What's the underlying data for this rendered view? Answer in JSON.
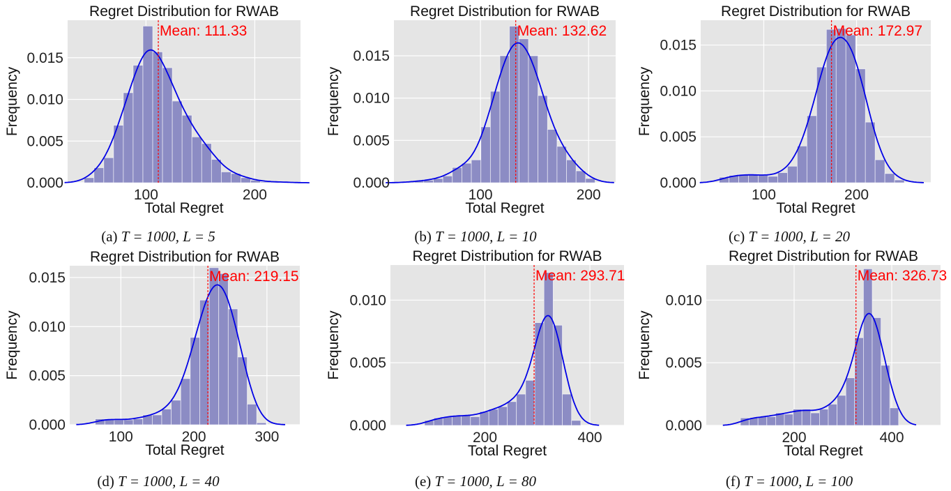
{
  "colors": {
    "bar": "#8c8cc4",
    "kde": "#0000e6",
    "mean": "#ff0000",
    "bg": "#e5e5e5",
    "grid": "#ffffff"
  },
  "chart_data": [
    {
      "type": "bar",
      "title": "Regret Distribution for RWAB",
      "xlabel": "Total Regret",
      "ylabel": "Frequency",
      "xlim": [
        28,
        242
      ],
      "ylim": [
        0,
        0.0195
      ],
      "xticks": [
        100,
        200
      ],
      "yticks": [
        "0.000",
        "0.005",
        "0.010",
        "0.015"
      ],
      "mean": 111.33,
      "mean_label": "Mean: 111.33",
      "bin_edges": [
        43.2,
        52.2,
        61.2,
        70.2,
        79.2,
        88.2,
        97.2,
        106.2,
        115.2,
        124.2,
        133.2,
        142.2,
        151.2,
        160.2,
        169.2,
        178.2,
        187.2,
        196.2,
        205.2,
        214.2,
        223.2,
        232.2
      ],
      "values": [
        0.0006,
        0.0018,
        0.003,
        0.0069,
        0.0108,
        0.0141,
        0.0188,
        0.0157,
        0.0138,
        0.0098,
        0.0081,
        0.0055,
        0.0047,
        0.0028,
        0.0013,
        0.0011,
        0.0006,
        0.0003,
        0.0001,
        0.0001,
        0.0001
      ],
      "caption_label": "(a)",
      "caption_math": "T = 1000, L = 5"
    },
    {
      "type": "bar",
      "title": "Regret Distribution for RWAB",
      "xlabel": "Total Regret",
      "ylabel": "Frequency",
      "xlim": [
        20,
        225
      ],
      "ylim": [
        0,
        0.0192
      ],
      "xticks": [
        100,
        200
      ],
      "yticks": [
        "0.000",
        "0.005",
        "0.010",
        "0.015"
      ],
      "mean": 132.62,
      "mean_label": "Mean: 132.62",
      "bin_edges": [
        30,
        38.8,
        47.6,
        56.4,
        65.2,
        74,
        82.8,
        91.6,
        100.4,
        109.2,
        118,
        126.8,
        135.6,
        144.4,
        153.2,
        162,
        170.8,
        179.6,
        188.4,
        197.2,
        206
      ],
      "values": [
        0.0001,
        0.0002,
        0.0003,
        0.0005,
        0.0008,
        0.0018,
        0.0023,
        0.0027,
        0.0066,
        0.0108,
        0.015,
        0.0185,
        0.017,
        0.015,
        0.0103,
        0.0063,
        0.0043,
        0.0027,
        0.0014,
        0.0005
      ],
      "caption_label": "(b)",
      "caption_math": "T = 1000, L = 10"
    },
    {
      "type": "bar",
      "title": "Regret Distribution for RWAB",
      "xlabel": "Total Regret",
      "ylabel": "Frequency",
      "xlim": [
        32,
        280
      ],
      "ylim": [
        0,
        0.0177
      ],
      "xticks": [
        100,
        200
      ],
      "yticks": [
        "0.000",
        "0.005",
        "0.010",
        "0.015"
      ],
      "mean": 172.97,
      "mean_label": "Mean: 172.97",
      "bin_edges": [
        52,
        62.5,
        73,
        83.5,
        94,
        104.5,
        115,
        125.5,
        136,
        146.5,
        157,
        167.5,
        178,
        188.5,
        199,
        209.5,
        220,
        230.5,
        241,
        251.5
      ],
      "values": [
        0.0006,
        0.0008,
        0.0009,
        0.0009,
        0.0008,
        0.0007,
        0.0011,
        0.0018,
        0.004,
        0.0073,
        0.0126,
        0.0167,
        0.0168,
        0.0161,
        0.0124,
        0.0066,
        0.0025,
        0.001,
        0.0003
      ],
      "caption_label": "(c)",
      "caption_math": "T = 1000, L = 20"
    },
    {
      "type": "bar",
      "title": "Regret Distribution for RWAB",
      "xlabel": "Total Regret",
      "ylabel": "Frequency",
      "xlim": [
        30,
        345
      ],
      "ylim": [
        0,
        0.0162
      ],
      "xticks": [
        100,
        200,
        300
      ],
      "yticks": [
        "0.000",
        "0.005",
        "0.010",
        "0.015"
      ],
      "mean": 219.15,
      "mean_label": "Mean: 219.15",
      "bin_edges": [
        65,
        78,
        91,
        104,
        117,
        130,
        143,
        156,
        169,
        182,
        195,
        208,
        221,
        234,
        247,
        260,
        273,
        286,
        299
      ],
      "values": [
        0.0006,
        0.0006,
        0.0005,
        0.0005,
        0.0006,
        0.001,
        0.001,
        0.0016,
        0.0025,
        0.0047,
        0.0089,
        0.0127,
        0.016,
        0.0154,
        0.0118,
        0.0069,
        0.0021,
        0.0002
      ],
      "caption_label": "(d)",
      "caption_math": "T = 1000, L = 40"
    },
    {
      "type": "bar",
      "title": "Regret Distribution for RWAB",
      "xlabel": "Total Regret",
      "ylabel": "Frequency",
      "xlim": [
        20,
        465
      ],
      "ylim": [
        0,
        0.0128
      ],
      "xticks": [
        200,
        400
      ],
      "yticks": [
        "0.000",
        "0.005",
        "0.010"
      ],
      "mean": 293.71,
      "mean_label": "Mean: 293.71",
      "bin_edges": [
        85,
        102.5,
        120,
        137.5,
        155,
        172.5,
        190,
        207.5,
        225,
        242.5,
        260,
        277.5,
        295,
        312.5,
        330,
        347.5,
        365,
        382.5
      ],
      "values": [
        0.0004,
        0.0006,
        0.0007,
        0.0008,
        0.0008,
        0.0007,
        0.0011,
        0.0013,
        0.0015,
        0.0019,
        0.0025,
        0.0036,
        0.0082,
        0.0122,
        0.008,
        0.0025,
        0.0004
      ],
      "caption_label": "(e)",
      "caption_math": "T = 1000, L = 80"
    },
    {
      "type": "bar",
      "title": "Regret Distribution for RWAB",
      "xlabel": "Total Regret",
      "ylabel": "Frequency",
      "xlim": [
        20,
        500
      ],
      "ylim": [
        0,
        0.0128
      ],
      "xticks": [
        200,
        400
      ],
      "yticks": [
        "0.000",
        "0.005",
        "0.010"
      ],
      "mean": 326.73,
      "mean_label": "Mean: 326.73",
      "bin_edges": [
        90,
        108,
        126,
        144,
        162,
        180,
        198,
        216,
        234,
        252,
        270,
        288,
        306,
        324,
        342,
        360,
        378,
        396,
        414
      ],
      "values": [
        0.0006,
        0.0006,
        0.0007,
        0.0007,
        0.001,
        0.0009,
        0.0013,
        0.0013,
        0.001,
        0.0013,
        0.0017,
        0.0024,
        0.0038,
        0.007,
        0.0125,
        0.0086,
        0.0048,
        0.0014
      ],
      "caption_label": "(f)",
      "caption_math": "T = 1000, L = 100"
    }
  ]
}
